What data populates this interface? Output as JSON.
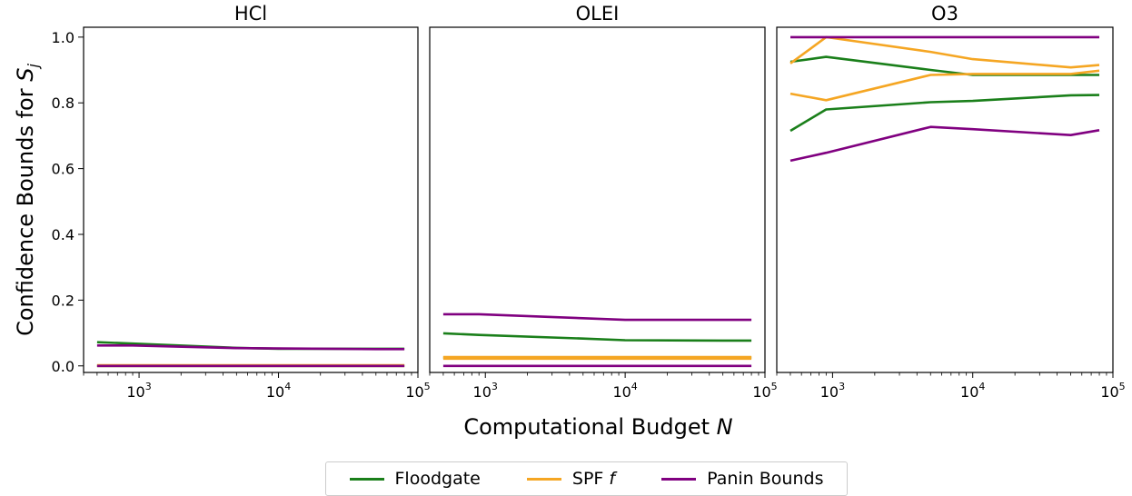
{
  "chart_data": {
    "type": "line",
    "ylabel": "Confidence Bounds for S_j",
    "ylabel_text": "Confidence Bounds for ",
    "ylabel_symbol": "S",
    "ylabel_subscript": "j",
    "xlabel_text": "Computational Budget ",
    "xlabel_symbol": "N",
    "x_scale": "log",
    "xlim": [
      400,
      100000
    ],
    "ylim": [
      -0.02,
      1.03
    ],
    "y_ticks": [
      "0.0",
      "0.2",
      "0.4",
      "0.6",
      "0.8",
      "1.0"
    ],
    "x_ticks": [
      {
        "base": "10",
        "exp": "3",
        "value": 1000
      },
      {
        "base": "10",
        "exp": "4",
        "value": 10000
      },
      {
        "base": "10",
        "exp": "5",
        "value": 100000
      }
    ],
    "x": [
      500,
      900,
      5000,
      10000,
      50000,
      80000
    ],
    "legend": {
      "placement": "bottom-center",
      "items": [
        {
          "label": "Floodgate",
          "color": "#1a7f1a"
        },
        {
          "label": "SPF ",
          "italic": "f",
          "color": "#f5a623"
        },
        {
          "label": "Panin Bounds",
          "color": "#800080"
        }
      ]
    },
    "panels": [
      {
        "title": "HCl",
        "series": [
          {
            "method": "Floodgate",
            "bound": "upper",
            "color": "#1a7f1a",
            "values": [
              0.072,
              0.068,
              0.055,
              0.052,
              0.052,
              0.052
            ]
          },
          {
            "method": "Floodgate",
            "bound": "lower",
            "color": "#1a7f1a",
            "values": [
              0.0,
              0.0,
              0.0,
              0.0,
              0.0,
              0.0
            ]
          },
          {
            "method": "SPF f",
            "bound": "upper",
            "color": "#f5a623",
            "values": [
              0.002,
              0.002,
              0.002,
              0.002,
              0.002,
              0.002
            ]
          },
          {
            "method": "SPF f",
            "bound": "lower",
            "color": "#f5a623",
            "values": [
              0.0,
              0.0,
              0.0,
              0.0,
              0.0,
              0.0
            ]
          },
          {
            "method": "Panin Bounds",
            "bound": "upper",
            "color": "#800080",
            "values": [
              0.062,
              0.062,
              0.054,
              0.053,
              0.051,
              0.051
            ]
          },
          {
            "method": "Panin Bounds",
            "bound": "lower",
            "color": "#800080",
            "values": [
              0.0,
              0.0,
              0.0,
              0.0,
              0.0,
              0.0
            ]
          }
        ]
      },
      {
        "title": "OLEI",
        "series": [
          {
            "method": "Floodgate",
            "bound": "upper",
            "color": "#1a7f1a",
            "values": [
              0.099,
              0.094,
              0.083,
              0.078,
              0.077,
              0.077
            ]
          },
          {
            "method": "Floodgate",
            "bound": "lower",
            "color": "#1a7f1a",
            "values": [
              0.025,
              0.025,
              0.025,
              0.025,
              0.025,
              0.025
            ]
          },
          {
            "method": "SPF f",
            "bound": "upper",
            "color": "#f5a623",
            "values": [
              0.027,
              0.027,
              0.027,
              0.027,
              0.027,
              0.027
            ]
          },
          {
            "method": "SPF f",
            "bound": "lower",
            "color": "#f5a623",
            "values": [
              0.022,
              0.022,
              0.022,
              0.022,
              0.022,
              0.022
            ]
          },
          {
            "method": "Panin Bounds",
            "bound": "upper",
            "color": "#800080",
            "values": [
              0.157,
              0.157,
              0.145,
              0.14,
              0.14,
              0.14
            ]
          },
          {
            "method": "Panin Bounds",
            "bound": "lower",
            "color": "#800080",
            "values": [
              0.0,
              0.0,
              0.0,
              0.0,
              0.0,
              0.0
            ]
          }
        ]
      },
      {
        "title": "O3",
        "series": [
          {
            "method": "Floodgate",
            "bound": "upper",
            "color": "#1a7f1a",
            "values": [
              0.925,
              0.94,
              0.9,
              0.885,
              0.885,
              0.885
            ]
          },
          {
            "method": "Floodgate",
            "bound": "lower",
            "color": "#1a7f1a",
            "values": [
              0.715,
              0.78,
              0.802,
              0.806,
              0.823,
              0.824
            ]
          },
          {
            "method": "SPF f",
            "bound": "upper",
            "color": "#f5a623",
            "values": [
              0.92,
              1.0,
              0.955,
              0.933,
              0.908,
              0.915
            ]
          },
          {
            "method": "SPF f",
            "bound": "lower",
            "color": "#f5a623",
            "values": [
              0.828,
              0.808,
              0.885,
              0.888,
              0.888,
              0.898
            ]
          },
          {
            "method": "Panin Bounds",
            "bound": "upper",
            "color": "#800080",
            "values": [
              1.0,
              1.0,
              1.0,
              1.0,
              1.0,
              1.0
            ]
          },
          {
            "method": "Panin Bounds",
            "bound": "lower",
            "color": "#800080",
            "values": [
              0.624,
              0.648,
              0.727,
              0.72,
              0.702,
              0.717
            ]
          }
        ]
      }
    ]
  }
}
